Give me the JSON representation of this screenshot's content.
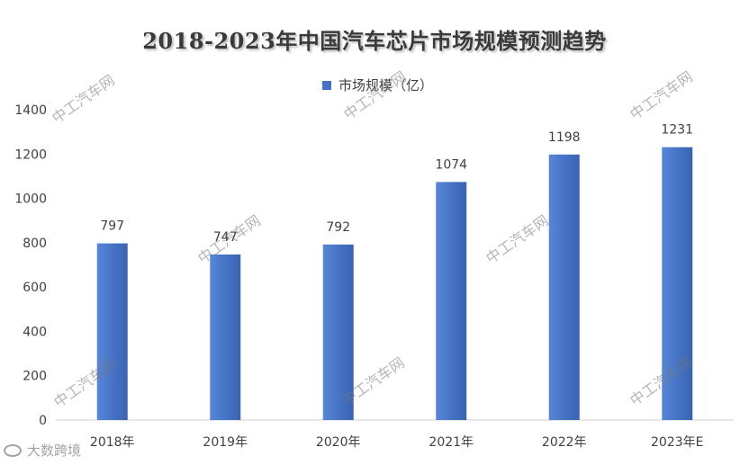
{
  "chart_data": {
    "type": "bar",
    "title": "2018-2023年中国汽车芯片市场规模预测趋势",
    "categories": [
      "2018年",
      "2019年",
      "2020年",
      "2021年",
      "2022年",
      "2023年E"
    ],
    "series": [
      {
        "name": "市场规模（亿）",
        "values": [
          797,
          747,
          792,
          1074,
          1198,
          1231
        ]
      }
    ],
    "xlabel": "",
    "ylabel": "",
    "ylim": [
      0,
      1400
    ],
    "yticks": [
      0,
      200,
      400,
      600,
      800,
      1000,
      1200,
      1400
    ],
    "grid": false,
    "legend_position": "top-center",
    "bar_color": "#4472c4",
    "data_labels": true
  },
  "watermark": {
    "text": "中工汽车网"
  },
  "logo": {
    "text": "大数跨境"
  }
}
